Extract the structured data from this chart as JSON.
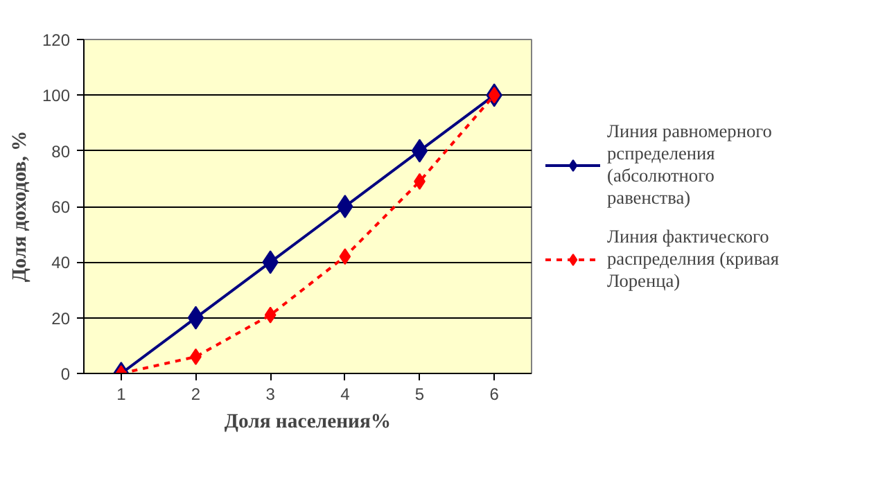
{
  "chart_data": {
    "type": "line",
    "xlabel": "Доля населения%",
    "ylabel": "Доля доходов, %",
    "categories": [
      "1",
      "2",
      "3",
      "4",
      "5",
      "6"
    ],
    "series": [
      {
        "name": "Линия равномерного рспределения (абсолютного равенства)",
        "color": "#000080",
        "values": [
          0,
          20,
          40,
          60,
          80,
          100
        ],
        "line_style": "solid"
      },
      {
        "name": "Линия фактического распределния (кривая Лоренца)",
        "color": "#ff0000",
        "values": [
          0,
          6,
          21,
          42,
          69,
          100
        ],
        "line_style": "dashed"
      }
    ],
    "ylim": [
      0,
      120
    ],
    "yticks": [
      0,
      20,
      40,
      60,
      80,
      100,
      120
    ],
    "grid": "y",
    "legend": "right",
    "marker": "diamond"
  }
}
